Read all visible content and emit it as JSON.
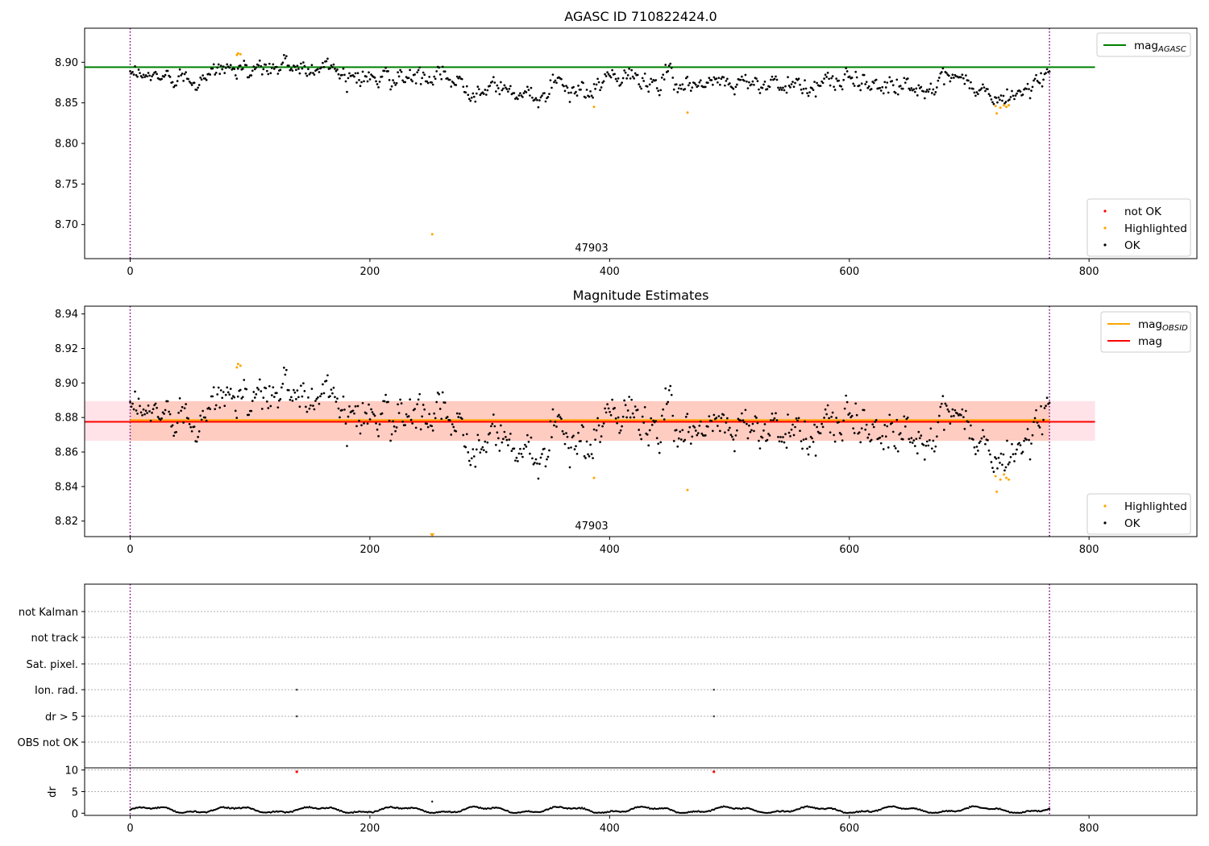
{
  "chart_data": [
    {
      "type": "scatter",
      "title": "AGASC ID 710822424.0",
      "annotation": "47903",
      "xlim": [
        -38,
        890
      ],
      "ylim": [
        8.658,
        8.942
      ],
      "xticks": [
        0,
        200,
        400,
        600,
        800
      ],
      "yticks": [
        8.7,
        8.75,
        8.8,
        8.85,
        8.9
      ],
      "ytick_labels": [
        "8.70",
        "8.75",
        "8.80",
        "8.85",
        "8.90"
      ],
      "vlines": [
        0,
        767
      ],
      "hline": {
        "name": "mag_AGASC",
        "y": 8.894,
        "x_range": [
          -38,
          805
        ],
        "color": "#008000"
      },
      "legend_top": [
        {
          "label": "mag",
          "sub": "AGASC",
          "color": "#008000",
          "kind": "line"
        }
      ],
      "legend_bottom": [
        {
          "label": "not OK",
          "color": "#ff0000",
          "kind": "dot"
        },
        {
          "label": "Highlighted",
          "color": "#ffa500",
          "kind": "dot"
        },
        {
          "label": "OK",
          "color": "#000000",
          "kind": "dot"
        }
      ],
      "series": [
        {
          "name": "OK",
          "color": "#000000",
          "x_start": 0,
          "x_end": 767,
          "n": 760,
          "profile_x": [
            0,
            60,
            90,
            120,
            160,
            200,
            250,
            300,
            330,
            360,
            380,
            400,
            450,
            500,
            540,
            560,
            600,
            650,
            700,
            725,
            745,
            767
          ],
          "profile_y": [
            8.88,
            8.885,
            8.893,
            8.893,
            8.895,
            8.882,
            8.878,
            8.87,
            8.862,
            8.868,
            8.858,
            8.88,
            8.877,
            8.876,
            8.878,
            8.864,
            8.88,
            8.87,
            8.874,
            8.85,
            8.866,
            8.884
          ],
          "noise": 0.009
        },
        {
          "name": "Highlighted",
          "color": "#ffa500",
          "points": [
            [
              89,
              8.909
            ],
            [
              90,
              8.911
            ],
            [
              92,
              8.91
            ],
            [
              252,
              8.688
            ],
            [
              387,
              8.845
            ],
            [
              465,
              8.838
            ],
            [
              722,
              8.846
            ],
            [
              723,
              8.837
            ],
            [
              726,
              8.844
            ],
            [
              729,
              8.847
            ],
            [
              731,
              8.845
            ],
            [
              733,
              8.847
            ]
          ]
        }
      ]
    },
    {
      "type": "scatter",
      "title": "Magnitude Estimates",
      "annotation": "47903",
      "xlim": [
        -38,
        890
      ],
      "ylim": [
        8.811,
        8.9445
      ],
      "xticks": [
        0,
        200,
        400,
        600,
        800
      ],
      "yticks": [
        8.82,
        8.84,
        8.86,
        8.88,
        8.9,
        8.92,
        8.94
      ],
      "ytick_labels": [
        "8.82",
        "8.84",
        "8.86",
        "8.88",
        "8.90",
        "8.92",
        "8.94"
      ],
      "vlines": [
        0,
        767
      ],
      "band_outer": {
        "y_range": [
          8.8665,
          8.8895
        ],
        "x_range": [
          -38,
          805
        ],
        "color": "#ffc0cb"
      },
      "band_inner": {
        "y_range": [
          8.8665,
          8.8895
        ],
        "x_range": [
          0,
          767
        ],
        "color": "#ffa07a"
      },
      "mag_obsid": {
        "y": 8.8785,
        "x_range": [
          0,
          767
        ],
        "color": "#ffa500"
      },
      "mag": {
        "y": 8.8775,
        "x_range": [
          -38,
          805
        ],
        "color": "#ff0000"
      },
      "legend_top": [
        {
          "label": "mag",
          "sub": "OBSID",
          "color": "#ffa500",
          "kind": "line"
        },
        {
          "label": "mag",
          "sub": "",
          "color": "#ff0000",
          "kind": "line"
        }
      ],
      "legend_bottom": [
        {
          "label": "Highlighted",
          "color": "#ffa500",
          "kind": "dot"
        },
        {
          "label": "OK",
          "color": "#000000",
          "kind": "dot"
        }
      ],
      "series": [
        {
          "name": "OK",
          "color": "#000000",
          "x_start": 0,
          "x_end": 767,
          "n": 760,
          "profile_x": [
            0,
            60,
            90,
            120,
            160,
            200,
            250,
            300,
            330,
            360,
            380,
            400,
            450,
            500,
            540,
            560,
            600,
            650,
            700,
            725,
            745,
            767
          ],
          "profile_y": [
            8.88,
            8.885,
            8.893,
            8.893,
            8.895,
            8.882,
            8.878,
            8.87,
            8.862,
            8.868,
            8.858,
            8.88,
            8.877,
            8.876,
            8.878,
            8.864,
            8.88,
            8.87,
            8.874,
            8.85,
            8.866,
            8.884
          ],
          "noise": 0.009
        },
        {
          "name": "Highlighted",
          "color": "#ffa500",
          "points": [
            [
              89,
              8.909
            ],
            [
              90,
              8.911
            ],
            [
              92,
              8.91
            ],
            [
              387,
              8.845
            ],
            [
              465,
              8.838
            ],
            [
              722,
              8.846
            ],
            [
              723,
              8.837
            ],
            [
              726,
              8.844
            ],
            [
              729,
              8.847
            ],
            [
              731,
              8.845
            ],
            [
              733,
              8.844
            ]
          ]
        },
        {
          "name": "Highlighted (off-scale)",
          "color": "#ffa500",
          "marker": "triangle",
          "points": [
            [
              252,
              8.812
            ]
          ]
        }
      ]
    },
    {
      "type": "scatter",
      "title": "",
      "xlim": [
        -38,
        890
      ],
      "xticks": [
        0,
        200,
        400,
        600,
        800
      ],
      "vlines": [
        0,
        767
      ],
      "flag_rows": [
        "not Kalman",
        "not track",
        "Sat. pixel.",
        "Ion. rad.",
        "dr > 5",
        "OBS not OK"
      ],
      "flags": [
        {
          "row": "Ion. rad.",
          "x": [
            139,
            487
          ]
        },
        {
          "row": "dr > 5",
          "x": [
            139,
            487
          ]
        }
      ],
      "dr": {
        "ylabel": "dr",
        "ylim": [
          -0.5,
          10.5
        ],
        "yticks": [
          0,
          5,
          10
        ],
        "series": {
          "name": "dr",
          "color": "#000000",
          "x_start": 0,
          "x_end": 767,
          "n": 760
        },
        "outliers": {
          "color": "#ff0000",
          "points": [
            [
              139,
              9.6
            ],
            [
              487,
              9.6
            ]
          ]
        },
        "spike": [
          [
            252,
            2.7
          ]
        ]
      }
    }
  ]
}
